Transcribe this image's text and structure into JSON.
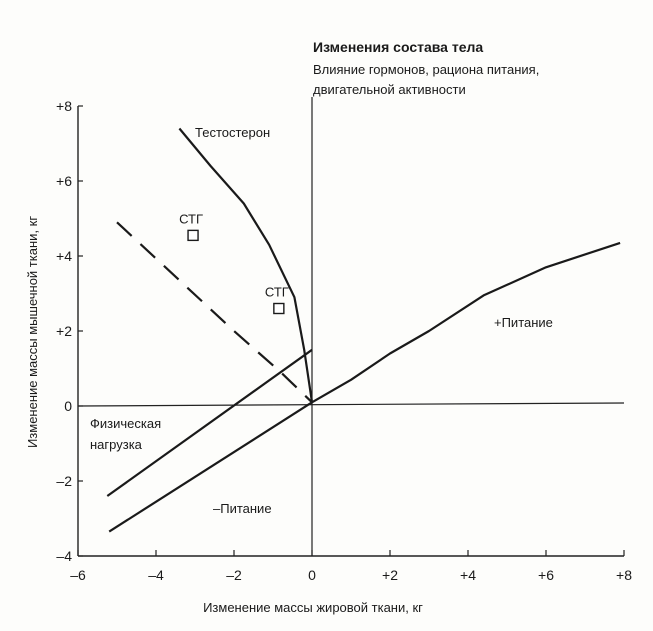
{
  "chart_data": {
    "type": "line",
    "title": "Изменения состава тела",
    "subtitle_lines": [
      "Влияние гормонов, рациона питания,",
      "двигательной активности"
    ],
    "xlabel": "Изменение массы жировой ткани, кг",
    "ylabel": "Изменение массы мышечной ткани, кг",
    "xlim": [
      -6,
      8
    ],
    "ylim": [
      -4,
      8
    ],
    "x_ticks": [
      "–6",
      "–4",
      "–2",
      "0",
      "+2",
      "+4",
      "+6",
      "+8"
    ],
    "x_tick_values": [
      -6,
      -4,
      -2,
      0,
      2,
      4,
      6,
      8
    ],
    "y_ticks": [
      "–4",
      "–2",
      "0",
      "+2",
      "+4",
      "+6",
      "+8"
    ],
    "y_tick_values": [
      -4,
      -2,
      0,
      2,
      4,
      6,
      8
    ],
    "grid": false,
    "series": [
      {
        "name": "Тестостерон",
        "style": "solid",
        "points": [
          [
            -3.4,
            7.4
          ],
          [
            -2.6,
            6.4
          ],
          [
            -1.75,
            5.4
          ],
          [
            -1.1,
            4.3
          ],
          [
            -0.45,
            2.9
          ],
          [
            -0.2,
            1.5
          ],
          [
            0,
            0.1
          ]
        ]
      },
      {
        "style": "dashed",
        "points": [
          [
            -5,
            4.9
          ],
          [
            -2,
            2.0
          ],
          [
            -0.8,
            0.9
          ],
          [
            0,
            0.1
          ]
        ]
      },
      {
        "name": "+Питание",
        "style": "solid",
        "points": [
          [
            0,
            0.1
          ],
          [
            1,
            0.7
          ],
          [
            2,
            1.4
          ],
          [
            3,
            2.0
          ],
          [
            4.4,
            2.95
          ],
          [
            6,
            3.7
          ],
          [
            7.9,
            4.35
          ]
        ]
      },
      {
        "name": "Физическая нагрузка",
        "style": "solid",
        "points": [
          [
            -5.25,
            -2.4
          ],
          [
            0,
            1.5
          ]
        ]
      },
      {
        "name": "–Питание",
        "style": "solid",
        "points": [
          [
            -5.2,
            -3.35
          ],
          [
            0,
            0.1
          ]
        ]
      }
    ],
    "markers": [
      {
        "label": "СТГ",
        "x": -3.05,
        "y": 4.55
      },
      {
        "label": "СТГ",
        "x": -0.85,
        "y": 2.6
      }
    ],
    "annotations": {
      "testosterone": "Тестостерон",
      "plus_nutrition": "+Питание",
      "exercise_line1": "Физическая",
      "exercise_line2": "нагрузка",
      "minus_nutrition": "–Питание"
    }
  }
}
